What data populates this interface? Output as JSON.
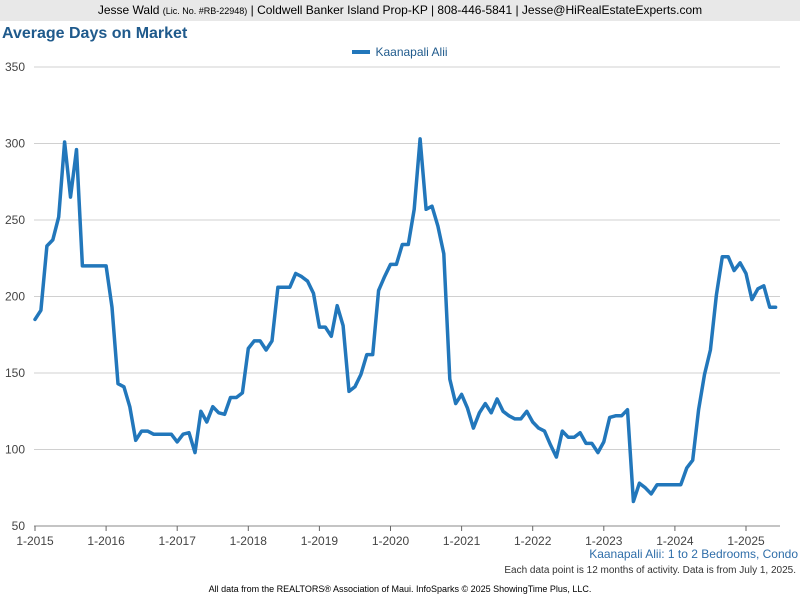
{
  "header": {
    "name": "Jesse Wald",
    "license": "(Lic. No. #RB-22948)",
    "rest": "| Coldwell Banker Island Prop-KP | 808-446-5841 | Jesse@HiRealEstateExperts.com"
  },
  "subtitle": "Kaanapali Alii: 1 to 2 Bedrooms, Condo",
  "note": "Each data point is 12 months of activity. Data is from July 1, 2025.",
  "footer": "All data from the REALTORS® Association of Maui. InfoSparks © 2025 ShowingTime Plus, LLC.",
  "colors": {
    "line": "#2277bb",
    "grid": "#d0d0d0",
    "title": "#1f5a8c"
  },
  "chart_data": {
    "type": "line",
    "title": "Average Days on Market",
    "xlabel": "",
    "ylabel": "",
    "ylim": [
      50,
      350
    ],
    "yticks": [
      50,
      100,
      150,
      200,
      250,
      300,
      350
    ],
    "xticks": [
      "1-2015",
      "1-2016",
      "1-2017",
      "1-2018",
      "1-2019",
      "1-2020",
      "1-2021",
      "1-2022",
      "1-2023",
      "1-2024",
      "1-2025"
    ],
    "grid": true,
    "legend": "top-center",
    "x_start": "2015-01",
    "x_interval": "monthly",
    "series": [
      {
        "name": "Kaanapali Alii",
        "values": [
          185,
          191,
          233,
          237,
          252,
          301,
          265,
          296,
          220,
          220,
          220,
          220,
          220,
          193,
          143,
          141,
          128,
          106,
          112,
          112,
          110,
          110,
          110,
          110,
          105,
          110,
          111,
          98,
          125,
          118,
          128,
          124,
          123,
          134,
          134,
          137,
          166,
          171,
          171,
          165,
          171,
          206,
          206,
          206,
          215,
          213,
          210,
          202,
          180,
          180,
          174,
          194,
          181,
          138,
          141,
          149,
          162,
          162,
          204,
          213,
          221,
          221,
          234,
          234,
          257,
          303,
          257,
          259,
          246,
          228,
          146,
          130,
          136,
          127,
          114,
          124,
          130,
          124,
          133,
          125,
          122,
          120,
          120,
          125,
          118,
          114,
          112,
          103,
          95,
          112,
          108,
          108,
          111,
          104,
          104,
          98,
          105,
          121,
          122,
          122,
          126,
          66,
          78,
          75,
          71,
          77,
          77,
          77,
          77,
          77,
          88,
          93,
          126,
          149,
          165,
          201,
          226,
          226,
          217,
          222,
          215,
          198,
          205,
          207,
          193,
          193
        ]
      }
    ]
  }
}
